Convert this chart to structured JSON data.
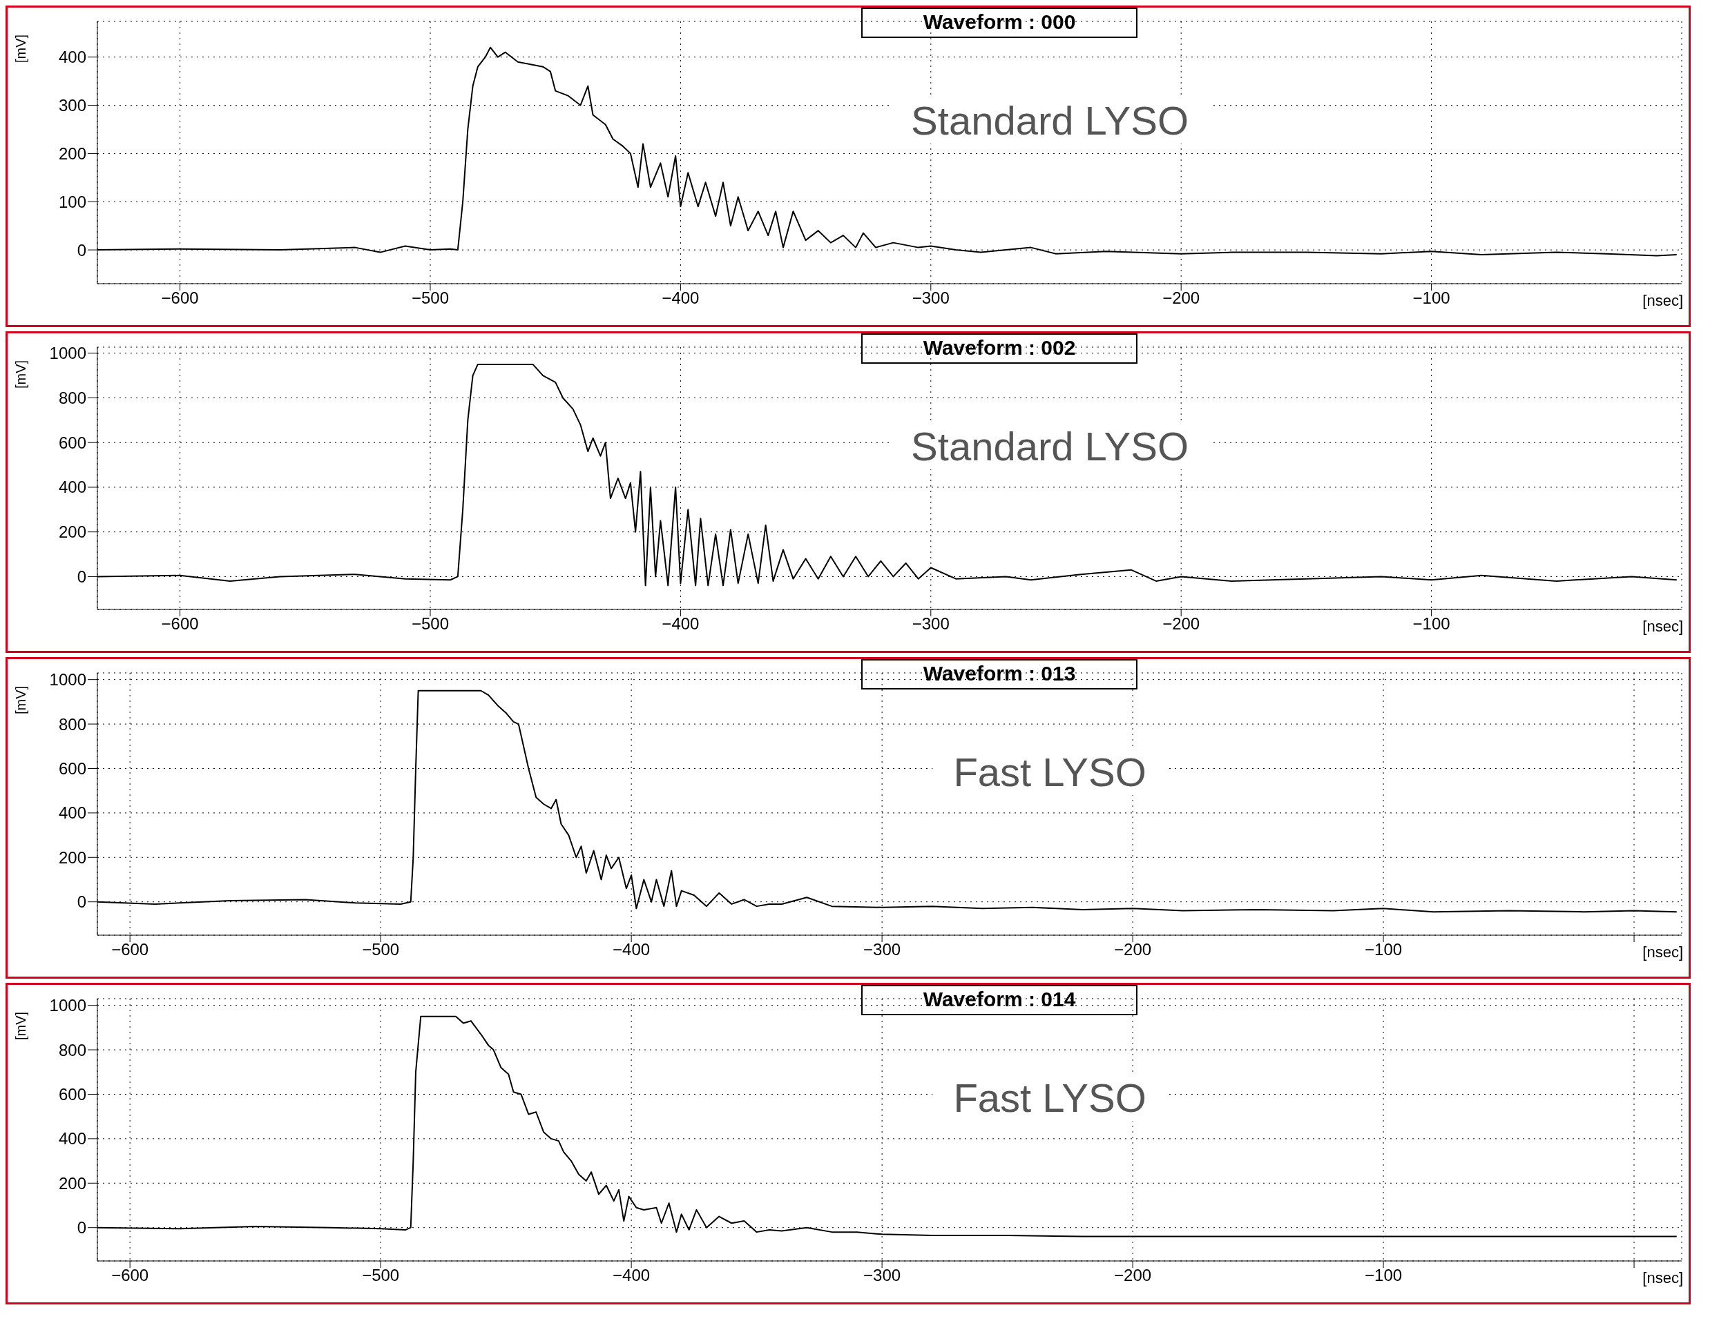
{
  "chart_data": [
    {
      "type": "line",
      "title": "Waveform : 000",
      "annotations": [
        "Standard LYSO"
      ],
      "xlabel": "[nsec]",
      "ylabel": "[mV]",
      "grid": true,
      "xlim": [
        -633,
        0
      ],
      "ylim": [
        -70,
        474
      ],
      "xticks": [
        -600,
        -500,
        -400,
        -300,
        -200,
        -100
      ],
      "yticks": [
        0,
        100,
        200,
        300,
        400
      ],
      "x": [
        -633,
        -600,
        -560,
        -530,
        -520,
        -510,
        -500,
        -492,
        -489,
        -487,
        -485,
        -483,
        -481,
        -478,
        -476,
        -473,
        -470,
        -465,
        -460,
        -455,
        -452,
        -450,
        -445,
        -440,
        -437,
        -435,
        -430,
        -427,
        -423,
        -420,
        -417,
        -415,
        -412,
        -408,
        -405,
        -402,
        -400,
        -397,
        -393,
        -390,
        -386,
        -383,
        -380,
        -377,
        -373,
        -369,
        -365,
        -362,
        -359,
        -355,
        -350,
        -345,
        -340,
        -335,
        -330,
        -327,
        -322,
        -315,
        -305,
        -300,
        -290,
        -280,
        -260,
        -250,
        -230,
        -200,
        -180,
        -150,
        -120,
        -100,
        -80,
        -50,
        -30,
        -10,
        -2
      ],
      "series": [
        {
          "color": "#000000",
          "values": [
            0,
            2,
            0,
            5,
            -5,
            8,
            0,
            2,
            0,
            100,
            250,
            340,
            380,
            400,
            420,
            400,
            410,
            390,
            385,
            380,
            370,
            330,
            320,
            300,
            340,
            280,
            260,
            230,
            215,
            200,
            130,
            220,
            130,
            180,
            110,
            195,
            90,
            160,
            90,
            140,
            70,
            140,
            50,
            110,
            40,
            80,
            30,
            80,
            5,
            80,
            20,
            40,
            15,
            30,
            5,
            35,
            5,
            15,
            5,
            8,
            0,
            -5,
            5,
            -8,
            -3,
            -8,
            -5,
            -5,
            -8,
            -3,
            -10,
            -5,
            -8,
            -12,
            -10
          ]
        }
      ]
    },
    {
      "type": "line",
      "title": "Waveform : 002",
      "annotations": [
        "Standard LYSO"
      ],
      "xlabel": "[nsec]",
      "ylabel": "[mV]",
      "grid": true,
      "xlim": [
        -633,
        0
      ],
      "ylim": [
        -147,
        1027
      ],
      "xticks": [
        -600,
        -500,
        -400,
        -300,
        -200,
        -100
      ],
      "yticks": [
        0,
        200,
        400,
        600,
        800,
        1000
      ],
      "x": [
        -633,
        -600,
        -580,
        -560,
        -530,
        -510,
        -492,
        -489,
        -487,
        -485,
        -483,
        -481,
        -470,
        -459,
        -455,
        -450,
        -447,
        -443,
        -440,
        -437,
        -435,
        -432,
        -430,
        -428,
        -425,
        -422,
        -420,
        -418,
        -416,
        -414,
        -412,
        -410,
        -408,
        -405,
        -402,
        -400,
        -397,
        -394,
        -392,
        -389,
        -386,
        -383,
        -380,
        -377,
        -373,
        -369,
        -366,
        -363,
        -359,
        -355,
        -350,
        -345,
        -340,
        -335,
        -330,
        -325,
        -320,
        -315,
        -310,
        -305,
        -300,
        -290,
        -270,
        -260,
        -240,
        -220,
        -210,
        -200,
        -180,
        -150,
        -120,
        -100,
        -80,
        -50,
        -20,
        -2
      ],
      "series": [
        {
          "color": "#000000",
          "values": [
            0,
            5,
            -20,
            0,
            10,
            -10,
            -15,
            0,
            300,
            700,
            900,
            950,
            950,
            950,
            900,
            870,
            800,
            750,
            680,
            560,
            620,
            540,
            600,
            350,
            440,
            350,
            420,
            200,
            470,
            -40,
            400,
            0,
            250,
            -40,
            400,
            -30,
            300,
            -40,
            260,
            -40,
            190,
            -40,
            210,
            -30,
            190,
            -30,
            230,
            -20,
            120,
            -10,
            80,
            -10,
            90,
            0,
            90,
            0,
            70,
            0,
            60,
            -10,
            40,
            -10,
            0,
            -15,
            10,
            30,
            -20,
            0,
            -20,
            -10,
            0,
            -15,
            5,
            -20,
            0,
            -15
          ]
        }
      ]
    },
    {
      "type": "line",
      "title": "Waveform : 013",
      "annotations": [
        "Fast LYSO"
      ],
      "xlabel": "[nsec]",
      "ylabel": "[mV]",
      "grid": true,
      "xlim": [
        -613,
        19
      ],
      "ylim": [
        -150,
        1030
      ],
      "xticks": [
        -600,
        -500,
        -400,
        -300,
        -200,
        -100,
        {
          "value": 0,
          "label": null
        }
      ],
      "yticks": [
        0,
        200,
        400,
        600,
        800,
        1000
      ],
      "x": [
        -613,
        -590,
        -560,
        -530,
        -510,
        -492,
        -488,
        -487,
        -486,
        -485,
        -470,
        -460,
        -457,
        -453,
        -450,
        -447,
        -445,
        -443,
        -441,
        -438,
        -435,
        -432,
        -430,
        -428,
        -425,
        -422,
        -420,
        -418,
        -415,
        -412,
        -410,
        -408,
        -405,
        -402,
        -400,
        -398,
        -395,
        -392,
        -390,
        -387,
        -384,
        -382,
        -380,
        -375,
        -370,
        -365,
        -360,
        -355,
        -350,
        -345,
        -340,
        -330,
        -320,
        -300,
        -280,
        -260,
        -240,
        -220,
        -200,
        -180,
        -150,
        -120,
        -100,
        -80,
        -50,
        -20,
        0,
        17
      ],
      "series": [
        {
          "color": "#000000",
          "values": [
            0,
            -10,
            5,
            10,
            -5,
            -10,
            0,
            200,
            600,
            950,
            950,
            950,
            930,
            880,
            850,
            810,
            800,
            700,
            600,
            470,
            440,
            420,
            460,
            350,
            300,
            200,
            250,
            130,
            230,
            100,
            210,
            150,
            200,
            60,
            120,
            -30,
            100,
            0,
            100,
            -20,
            140,
            -20,
            50,
            30,
            -20,
            40,
            -10,
            10,
            -20,
            -10,
            -10,
            20,
            -20,
            -25,
            -20,
            -30,
            -25,
            -35,
            -30,
            -40,
            -35,
            -40,
            -30,
            -45,
            -40,
            -45,
            -40,
            -45
          ]
        }
      ]
    },
    {
      "type": "line",
      "title": "Waveform : 014",
      "annotations": [
        "Fast LYSO"
      ],
      "xlabel": "[nsec]",
      "ylabel": "[mV]",
      "grid": true,
      "xlim": [
        -613,
        19
      ],
      "ylim": [
        -150,
        1030
      ],
      "xticks": [
        -600,
        -500,
        -400,
        -300,
        -200,
        -100,
        {
          "value": 0,
          "label": null
        }
      ],
      "yticks": [
        0,
        200,
        400,
        600,
        800,
        1000
      ],
      "x": [
        -613,
        -580,
        -550,
        -520,
        -500,
        -490,
        -488,
        -487,
        -486,
        -484,
        -470,
        -467,
        -464,
        -460,
        -457,
        -455,
        -452,
        -449,
        -447,
        -444,
        -441,
        -438,
        -435,
        -432,
        -429,
        -427,
        -424,
        -421,
        -418,
        -416,
        -413,
        -410,
        -407,
        -405,
        -403,
        -401,
        -398,
        -395,
        -390,
        -388,
        -385,
        -382,
        -380,
        -377,
        -374,
        -370,
        -365,
        -360,
        -355,
        -350,
        -345,
        -340,
        -330,
        -320,
        -310,
        -300,
        -280,
        -250,
        -220,
        -200,
        -150,
        -100,
        -50,
        0,
        17
      ],
      "series": [
        {
          "color": "#000000",
          "values": [
            0,
            -5,
            5,
            0,
            -5,
            -10,
            0,
            300,
            700,
            950,
            950,
            920,
            930,
            870,
            820,
            800,
            720,
            690,
            610,
            600,
            510,
            520,
            430,
            400,
            390,
            340,
            300,
            240,
            210,
            250,
            150,
            190,
            120,
            170,
            30,
            140,
            90,
            80,
            90,
            20,
            110,
            -20,
            60,
            -10,
            80,
            0,
            50,
            20,
            30,
            -20,
            -10,
            -15,
            0,
            -20,
            -20,
            -30,
            -35,
            -35,
            -40,
            -40,
            -40,
            -40,
            -40,
            -40,
            -40
          ]
        }
      ]
    }
  ]
}
